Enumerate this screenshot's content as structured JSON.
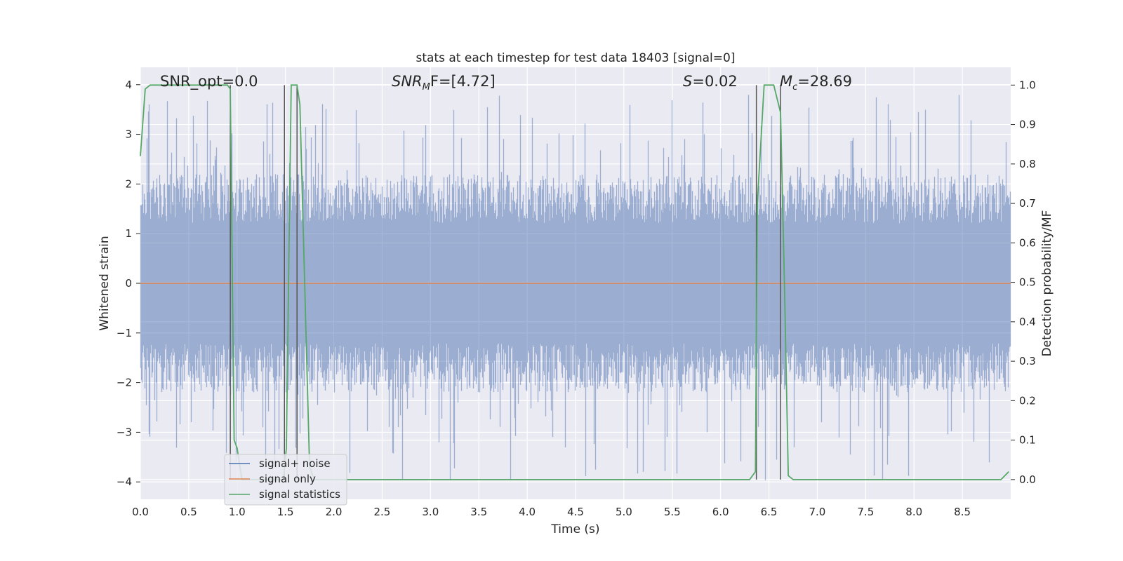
{
  "chart_data": {
    "type": "line",
    "title": "stats at each timestep for test data 18403 [signal=0]",
    "xlabel": "Time (s)",
    "ylabel": "Whitened strain",
    "y2label": "Detection probability/MF",
    "xlim": [
      0,
      9.0
    ],
    "ylim": [
      -4.35,
      4.35
    ],
    "y2lim": [
      -0.05,
      1.045
    ],
    "x_ticks": [
      0.0,
      0.5,
      1.0,
      1.5,
      2.0,
      2.5,
      3.0,
      3.5,
      4.0,
      4.5,
      5.0,
      5.5,
      6.0,
      6.5,
      7.0,
      7.5,
      8.0,
      8.5
    ],
    "x_tick_labels": [
      "0.0",
      "0.5",
      "1.0",
      "1.5",
      "2.0",
      "2.5",
      "3.0",
      "3.5",
      "4.0",
      "4.5",
      "5.0",
      "5.5",
      "6.0",
      "6.5",
      "7.0",
      "7.5",
      "8.0",
      "8.5"
    ],
    "y_ticks": [
      4,
      3,
      2,
      1,
      0,
      -1,
      -2,
      -3,
      -4
    ],
    "y_tick_labels": [
      "4",
      "3",
      "2",
      "1",
      "0",
      "−1",
      "−2",
      "−3",
      "−4"
    ],
    "y2_ticks": [
      1.0,
      0.9,
      0.8,
      0.7,
      0.6,
      0.5,
      0.4,
      0.3,
      0.2,
      0.1,
      0.0
    ],
    "y2_tick_labels": [
      "1.0",
      "0.9",
      "0.8",
      "0.7",
      "0.6",
      "0.5",
      "0.4",
      "0.3",
      "0.2",
      "0.1",
      "0.0"
    ],
    "grid": true,
    "legend_position": "lower-left",
    "annotations": {
      "snr_opt": "SNR_opt=0.0",
      "snr_mf_main": "SNR",
      "snr_mf_sub": "M",
      "snr_mf_rest": "F=[4.72]",
      "s_main": "S",
      "s_rest": "=0.02",
      "mc_main": "M",
      "mc_sub": "c",
      "mc_rest": "=28.69"
    },
    "vertical_markers": [
      0.93,
      1.49,
      1.62,
      6.37,
      6.62
    ],
    "series": [
      {
        "name": "signal+ noise",
        "color": "#4c72b0",
        "axis": "left",
        "style": "noise",
        "typical_max": 2.2,
        "typical_min": -2.2,
        "peak_max": 3.8,
        "peak_min": -4.0
      },
      {
        "name": "signal only",
        "color": "#dd8452",
        "axis": "left",
        "values": [
          0
        ]
      },
      {
        "name": "signal statistics",
        "color": "#55a868",
        "axis": "right",
        "x": [
          0.0,
          0.05,
          0.1,
          0.15,
          0.9,
          0.93,
          0.97,
          1.0,
          1.05,
          1.48,
          1.51,
          1.56,
          1.62,
          1.65,
          1.75,
          1.8,
          6.3,
          6.36,
          6.38,
          6.45,
          6.55,
          6.62,
          6.66,
          6.7,
          6.75,
          8.9,
          8.98
        ],
        "values": [
          0.82,
          0.99,
          1.0,
          1.0,
          1.0,
          0.99,
          0.1,
          0.08,
          0.0,
          0.0,
          0.08,
          1.0,
          1.0,
          0.95,
          0.03,
          0.0,
          0.0,
          0.02,
          0.7,
          1.0,
          1.0,
          0.93,
          0.5,
          0.01,
          0.0,
          0.0,
          0.02
        ]
      }
    ]
  }
}
